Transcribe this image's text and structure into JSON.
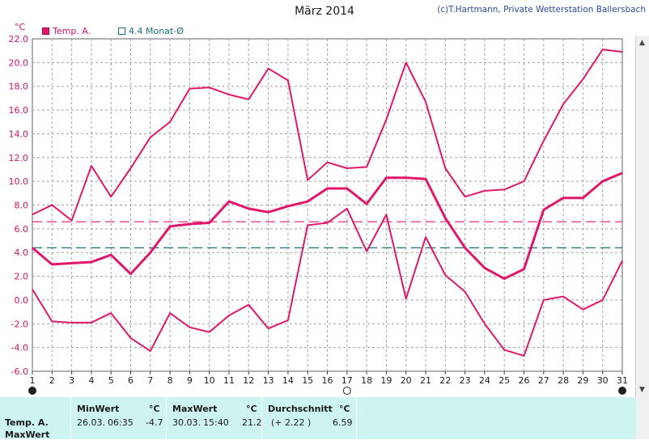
{
  "header": {
    "title": "März 2014",
    "credit": "(c)T.Hartmann, Private Wetterstation Ballersbach",
    "unit": "°C"
  },
  "legend": {
    "temp": "Temp. A.",
    "avg": "4.4 Monat-Ø"
  },
  "colors": {
    "series": "#e0176b",
    "avg_line": "#1b6f7a",
    "grid": "#a0a0a0",
    "axis_text": "#cc1166",
    "table_bg": "#cdf4f1"
  },
  "chart_data": {
    "type": "line",
    "title": "März 2014",
    "ylabel": "°C",
    "xlabel": "",
    "ylim": [
      -6,
      22
    ],
    "yticks": [
      "-6.0",
      "-4.0",
      "-2.0",
      "0.0",
      "2.0",
      "4.0",
      "6.0",
      "8.0",
      "10.0",
      "12.0",
      "14.0",
      "16.0",
      "18.0",
      "20.0",
      "22.0"
    ],
    "x": [
      1,
      2,
      3,
      4,
      5,
      6,
      7,
      8,
      9,
      10,
      11,
      12,
      13,
      14,
      15,
      16,
      17,
      18,
      19,
      20,
      21,
      22,
      23,
      24,
      25,
      26,
      27,
      28,
      29,
      30,
      31
    ],
    "grid": true,
    "series": [
      {
        "role": "max",
        "values": [
          7.2,
          8.0,
          6.7,
          11.3,
          8.7,
          11.1,
          13.7,
          15.0,
          17.8,
          17.9,
          17.3,
          16.9,
          19.5,
          18.5,
          10.1,
          11.6,
          11.1,
          11.2,
          15.2,
          20.0,
          16.7,
          11.1,
          8.7,
          9.2,
          9.3,
          10.0,
          13.4,
          16.5,
          18.6,
          21.1,
          20.9
        ]
      },
      {
        "role": "mean",
        "values": [
          4.4,
          3.0,
          3.1,
          3.2,
          3.8,
          2.2,
          4.0,
          6.2,
          6.4,
          6.5,
          8.3,
          7.7,
          7.4,
          7.9,
          8.3,
          9.4,
          9.4,
          8.1,
          10.3,
          10.3,
          10.2,
          6.9,
          4.4,
          2.7,
          1.8,
          2.6,
          7.6,
          8.6,
          8.6,
          10.0,
          10.7
        ]
      },
      {
        "role": "min",
        "values": [
          0.9,
          -1.8,
          -1.9,
          -1.9,
          -1.1,
          -3.2,
          -4.3,
          -1.1,
          -2.3,
          -2.7,
          -1.3,
          -0.4,
          -2.4,
          -1.7,
          6.3,
          6.5,
          7.7,
          4.1,
          7.2,
          0.1,
          5.3,
          2.1,
          0.7,
          -2.0,
          -4.2,
          -4.7,
          0.0,
          0.3,
          -0.8,
          0.0,
          3.3
        ]
      }
    ],
    "hlines": [
      {
        "value": 6.59,
        "color": "#e0176b"
      },
      {
        "value": 4.4,
        "color": "#1b6f7a"
      }
    ]
  },
  "table": {
    "row1_label": "Temp. A.",
    "row2_label": "MaxWert",
    "min": {
      "header": "MinWert",
      "unit": "°C",
      "date": "26.03.",
      "time": "06:35",
      "value": "-4.7"
    },
    "max": {
      "header": "MaxWert",
      "unit": "°C",
      "date": "30.03.",
      "time": "15:40",
      "value": "21.2"
    },
    "avg": {
      "header": "Durchschnitt",
      "unit": "°C",
      "delta": "(+ 2.22 )",
      "value": "6.59"
    }
  }
}
